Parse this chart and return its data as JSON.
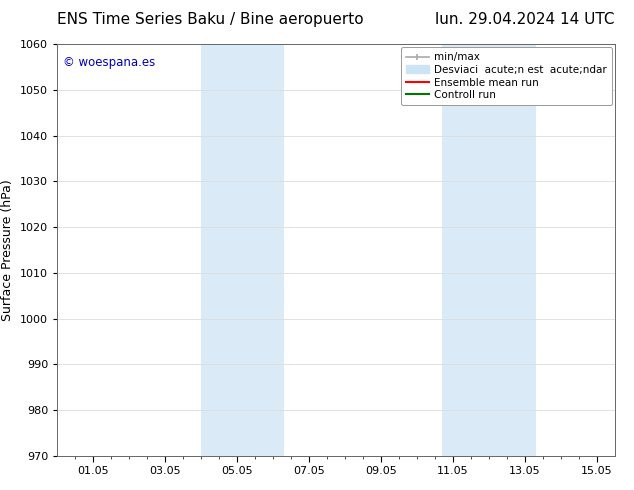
{
  "title_left": "ENS Time Series Baku / Bine aeropuerto",
  "title_right": "lun. 29.04.2024 14 UTC",
  "ylabel": "Surface Pressure (hPa)",
  "ylim": [
    970,
    1060
  ],
  "yticks": [
    970,
    980,
    990,
    1000,
    1010,
    1020,
    1030,
    1040,
    1050,
    1060
  ],
  "xtick_labels": [
    "01.05",
    "03.05",
    "05.05",
    "07.05",
    "09.05",
    "11.05",
    "13.05",
    "15.05"
  ],
  "xtick_positions": [
    1,
    3,
    5,
    7,
    9,
    11,
    13,
    15
  ],
  "xlim": [
    0.0,
    15.5
  ],
  "shaded_regions": [
    {
      "xmin": 4.0,
      "xmax": 5.5,
      "color": "#daeaf7"
    },
    {
      "xmin": 5.5,
      "xmax": 6.3,
      "color": "#daeaf7"
    },
    {
      "xmin": 10.7,
      "xmax": 12.0,
      "color": "#daeaf7"
    },
    {
      "xmin": 12.0,
      "xmax": 13.3,
      "color": "#daeaf7"
    }
  ],
  "watermark_text": "© woespana.es",
  "watermark_color": "#0000bb",
  "legend_label_minmax": "min/max",
  "legend_label_std": "Desviaci  acute;n est  acute;ndar",
  "legend_label_ens": "Ensemble mean run",
  "legend_label_ctrl": "Controll run",
  "legend_minmax_color": "#aaaaaa",
  "legend_std_color": "#cce4f5",
  "legend_ens_color": "#ff0000",
  "legend_ctrl_color": "#007700",
  "bg_color": "#ffffff",
  "plot_bg_color": "#ffffff",
  "grid_color": "#dddddd",
  "title_fontsize": 11,
  "tick_fontsize": 8,
  "ylabel_fontsize": 9,
  "legend_fontsize": 7.5
}
